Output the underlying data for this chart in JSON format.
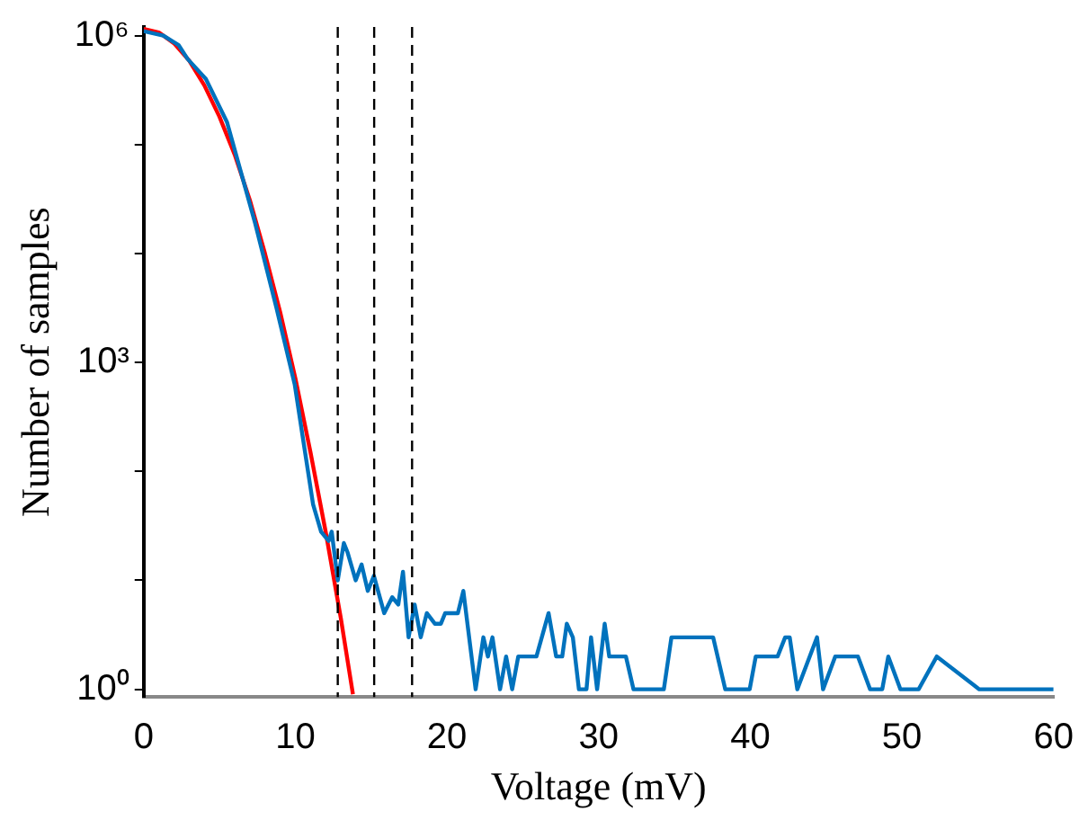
{
  "chart_data": {
    "type": "line",
    "xlabel": "Voltage (mV)",
    "ylabel": "Number of samples",
    "log": "y",
    "xlim": [
      0,
      60
    ],
    "xticks": [
      0,
      10,
      20,
      30,
      40,
      50,
      60
    ],
    "ylim": [
      0.85,
      1200000
    ],
    "yticks": [
      {
        "value": 1,
        "label": "10⁰"
      },
      {
        "value": 10,
        "label": null
      },
      {
        "value": 100,
        "label": null
      },
      {
        "value": 1000,
        "label": "10³"
      },
      {
        "value": 10000,
        "label": null
      },
      {
        "value": 100000,
        "label": null
      },
      {
        "value": 1000000,
        "label": "10⁶"
      }
    ],
    "grid": false,
    "legend": false,
    "marker": "none",
    "line_style": "solid",
    "series": [
      {
        "color": "#0072bd",
        "x": [
          0,
          1.3,
          2.3,
          2.9,
          4.1,
          5.5,
          7.35,
          8.75,
          9.96,
          10.57,
          11.17,
          11.7,
          12.2,
          12.4,
          12.8,
          13.2,
          13.45,
          13.98,
          14.37,
          14.78,
          15.18,
          15.86,
          16.39,
          16.79,
          17.1,
          17.47,
          17.87,
          18.27,
          18.67,
          19.2,
          19.6,
          19.88,
          20.72,
          21.08,
          21.89,
          22.4,
          22.7,
          23,
          23.5,
          23.9,
          24.3,
          24.7,
          25.9,
          26.7,
          27.2,
          27.6,
          27.9,
          28.3,
          28.7,
          29.2,
          29.5,
          29.9,
          30.4,
          30.7,
          31.8,
          32.3,
          34.3,
          34.8,
          37.55,
          38.35,
          39.96,
          40.36,
          41.8,
          42.3,
          42.6,
          43.1,
          44.4,
          44.8,
          45.6,
          47.1,
          47.9,
          48.7,
          49.1,
          49.9,
          51.1,
          52.3,
          55.1,
          60
        ],
        "values": [
          1100000,
          1000000,
          820000,
          610000,
          400000,
          160000,
          19000,
          3200,
          630,
          175,
          50,
          28,
          23,
          28,
          10,
          22,
          18,
          10,
          14,
          8,
          11,
          5,
          7,
          6,
          12,
          3,
          6,
          3,
          5,
          4,
          4,
          5,
          5,
          8,
          1,
          3,
          2,
          3,
          1,
          2,
          1,
          2,
          2,
          5,
          2,
          2,
          4,
          3,
          1,
          1,
          3,
          1,
          4,
          2,
          2,
          1,
          1,
          3,
          3,
          1,
          1,
          2,
          2,
          3,
          3,
          1,
          3,
          1,
          2,
          2,
          1,
          1,
          2,
          1,
          1,
          2,
          1,
          1
        ]
      },
      {
        "color": "#ff0000",
        "x": [
          0,
          1,
          2,
          3,
          4,
          5,
          6,
          7,
          8,
          9,
          10,
          11,
          12,
          13,
          13.8
        ],
        "values": [
          1150000,
          1070000,
          850000,
          590000,
          350000,
          180000,
          81000,
          31000,
          10000,
          2900,
          720,
          150,
          28,
          4.5,
          0.9
        ]
      }
    ],
    "ref_lines": [
      {
        "axis": "x",
        "value": 12.8,
        "color": "#000000",
        "line_style": "dashed"
      },
      {
        "axis": "x",
        "value": 15.2,
        "color": "#000000",
        "line_style": "dashed"
      },
      {
        "axis": "x",
        "value": 17.7,
        "color": "#000000",
        "line_style": "dashed"
      }
    ]
  }
}
